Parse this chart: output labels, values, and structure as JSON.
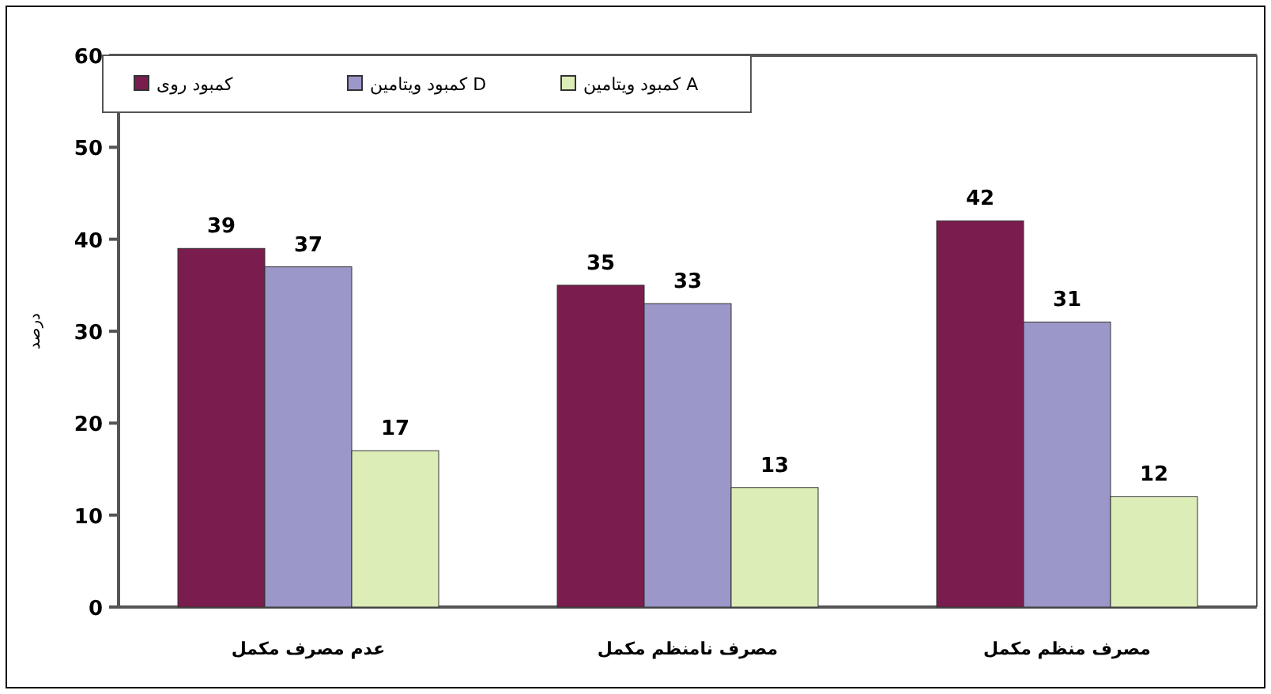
{
  "chart_data": {
    "type": "bar",
    "ylabel": "درصد",
    "categories": [
      "عدم مصرف مکمل",
      "مصرف نامنظم مکمل",
      "مصرف منظم مکمل"
    ],
    "series": [
      {
        "name": "کمبود روی",
        "color": "#7a1d4e",
        "values": [
          39,
          35,
          42
        ]
      },
      {
        "name": "کمبود ویتامین D",
        "color": "#9b97c9",
        "values": [
          37,
          33,
          31
        ]
      },
      {
        "name": "کمبود ویتامین A",
        "color": "#dcedb8",
        "values": [
          17,
          13,
          12
        ]
      }
    ],
    "ylim": [
      0,
      60
    ],
    "yticks": [
      0,
      10,
      20,
      30,
      40,
      50,
      60
    ],
    "grid": false,
    "legend": "top left",
    "data_labels": true
  }
}
